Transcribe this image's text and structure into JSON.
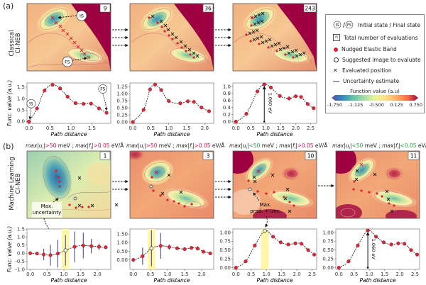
{
  "panel_labels": {
    "a": "(a)",
    "b": "(b)"
  },
  "row_labels": {
    "classical": [
      "Classical",
      "CI-NEB"
    ],
    "ml": [
      "Machine Learning",
      "CI-NEB"
    ]
  },
  "colors": {
    "neb_point": "#d62839",
    "uncertainty": "#4b4ba0",
    "highlight": "#fff7a8",
    "bad": "#e0114f",
    "good": "#2a9a4a"
  },
  "maps_a": [
    {
      "count": "9"
    },
    {
      "count": "36"
    },
    {
      "count": "243"
    }
  ],
  "maps_b": [
    {
      "count": "1",
      "u_label": "max|u",
      "u_op": ">50",
      "u_unit": " meV ; ",
      "f_label": "max|f",
      "f_op": ">0.05",
      "f_unit": "  eV/Å",
      "u_ok": false,
      "f_ok": false
    },
    {
      "count": "3",
      "u_label": "max|u",
      "u_op": ">50",
      "u_unit": " meV ; ",
      "f_label": "max|f",
      "f_op": ">0.05",
      "f_unit": "  eV/Å",
      "u_ok": false,
      "f_ok": false
    },
    {
      "count": "10",
      "u_label": "max|u",
      "u_op": "<50",
      "u_unit": " meV ; ",
      "f_label": "max|f",
      "f_op": ">0.05",
      "f_unit": "  eV/Å",
      "u_ok": true,
      "f_ok": false
    },
    {
      "count": "11",
      "u_label": "max|u",
      "u_op": "<50",
      "u_unit": " meV ; ",
      "f_label": "max|f",
      "f_op": "<0.05",
      "f_unit": "  eV/Å",
      "u_ok": true,
      "f_ok": true
    }
  ],
  "annotations": {
    "IS": "IS",
    "FS": "FS",
    "max_uncertainty": [
      "Max.",
      "uncertainty"
    ],
    "max_pred_unc": [
      "Max.",
      "pred. + unc."
    ],
    "barrier": "1.060 eV"
  },
  "legend": {
    "is_fs": "Initial state / Final state",
    "n_box": "n",
    "total_evals": "Total number of evaluations",
    "neb": "Nudged Elastic Band",
    "suggested": "Suggested image to evaluate",
    "evaluated": "Evaluated position",
    "uncertainty": "Uncertainty estimate",
    "colorbar_title": "Function value (a.u)",
    "colorbar_ticks": [
      "-1.750",
      "-1.125",
      "-0.500",
      "0.125",
      "0.750"
    ]
  },
  "chart_data": [
    {
      "type": "line",
      "id": "a1",
      "xlabel": "Path distance",
      "ylabel": "Func. value (a.u.)",
      "xlim": [
        -0.05,
        1.95
      ],
      "ylim": [
        -0.08,
        1.68
      ],
      "xticks": [
        "0.0",
        "0.5",
        "1.0",
        "1.5"
      ],
      "xtick_values": [
        0,
        0.5,
        1.0,
        1.5
      ],
      "yticks": [
        "0.0",
        "0.5",
        "1.0",
        "1.5"
      ],
      "ytick_values": [
        0,
        0.5,
        1.0,
        1.5
      ],
      "x": [
        0.0,
        0.19,
        0.37,
        0.56,
        0.74,
        0.92,
        1.11,
        1.3,
        1.48,
        1.67,
        1.85
      ],
      "y": [
        0.0,
        0.57,
        1.35,
        1.6,
        1.44,
        1.08,
        0.8,
        0.77,
        0.78,
        0.57,
        0.38
      ],
      "annotations": [
        "IS",
        "FS"
      ]
    },
    {
      "type": "line",
      "id": "a2",
      "xlabel": "Path distance",
      "ylabel": "",
      "xlim": [
        -0.08,
        2.25
      ],
      "ylim": [
        -0.05,
        1.38
      ],
      "xticks": [
        "0.0",
        "0.5",
        "1.0",
        "1.5",
        "2.0"
      ],
      "xtick_values": [
        0,
        0.5,
        1.0,
        1.5,
        2.0
      ],
      "yticks": [
        "0.00",
        "0.25",
        "0.50",
        "0.75",
        "1.00",
        "1.25"
      ],
      "ytick_values": [
        0,
        0.25,
        0.5,
        0.75,
        1.0,
        1.25
      ],
      "x": [
        0.0,
        0.3,
        0.48,
        0.62,
        0.79,
        1.0,
        1.32,
        1.53,
        1.7,
        1.91,
        2.12
      ],
      "y": [
        0.0,
        0.43,
        1.15,
        1.32,
        1.13,
        0.74,
        0.66,
        0.73,
        0.71,
        0.51,
        0.38
      ]
    },
    {
      "type": "line",
      "id": "a3",
      "xlabel": "Path distance",
      "ylabel": "",
      "xlim": [
        -0.1,
        2.7
      ],
      "ylim": [
        -0.05,
        1.1
      ],
      "xticks": [
        "0.0",
        "0.5",
        "1.0",
        "1.5",
        "2.0",
        "2.5"
      ],
      "xtick_values": [
        0,
        0.5,
        1.0,
        1.5,
        2.0,
        2.5
      ],
      "yticks": [
        "0.0",
        "0.2",
        "0.4",
        "0.6",
        "0.8",
        "1.0"
      ],
      "ytick_values": [
        0,
        0.2,
        0.4,
        0.6,
        0.8,
        1.0
      ],
      "x": [
        0.0,
        0.35,
        0.72,
        0.95,
        1.17,
        1.47,
        1.78,
        2.0,
        2.18,
        2.4,
        2.6
      ],
      "y": [
        0.0,
        0.22,
        0.86,
        1.06,
        0.97,
        0.73,
        0.66,
        0.72,
        0.7,
        0.5,
        0.38
      ],
      "barrier": {
        "x": 0.95,
        "from": 0.0,
        "to": 1.06,
        "label": "1.060 eV"
      }
    },
    {
      "type": "line",
      "id": "b1",
      "xlabel": "Path distance",
      "ylabel": "Func. value (a.u.)",
      "xlim": [
        -0.1,
        2.4
      ],
      "ylim": [
        -1.0,
        1.5
      ],
      "xticks": [
        "0.0",
        "0.5",
        "1.0",
        "1.5",
        "2.0"
      ],
      "xtick_values": [
        0,
        0.5,
        1.0,
        1.5,
        2.0
      ],
      "yticks": [
        "-1.0",
        "-0.5",
        "0.0",
        "0.5",
        "1.0",
        "1.5"
      ],
      "ytick_values": [
        -1.0,
        -0.5,
        0,
        0.5,
        1.0,
        1.5
      ],
      "x": [
        0.0,
        0.2,
        0.4,
        0.6,
        0.82,
        1.05,
        1.32,
        1.58,
        1.82,
        2.05,
        2.25
      ],
      "y": [
        0.0,
        -0.02,
        -0.08,
        -0.12,
        -0.02,
        0.18,
        0.4,
        0.48,
        0.44,
        0.4,
        0.37
      ],
      "uncertainty": [
        0,
        0,
        0.35,
        0.65,
        0.85,
        0.95,
        0.95,
        0.8,
        0.45,
        0.2,
        0
      ],
      "suggested_index": 5,
      "highlight_x": 1.05
    },
    {
      "type": "line",
      "id": "b2",
      "xlabel": "Path distance",
      "ylabel": "",
      "xlim": [
        -0.1,
        2.35
      ],
      "ylim": [
        -0.55,
        1.8
      ],
      "xticks": [
        "0.0",
        "0.5",
        "1.0",
        "1.5",
        "2.0"
      ],
      "xtick_values": [
        0,
        0.5,
        1.0,
        1.5,
        2.0
      ],
      "yticks": [
        "0.00",
        "0.50",
        "1.00",
        "1.50"
      ],
      "ytick_values": [
        0,
        0.5,
        1.0,
        1.5
      ],
      "x": [
        0.0,
        0.27,
        0.53,
        0.8,
        1.05,
        1.28,
        1.5,
        1.7,
        1.88,
        2.05,
        2.25
      ],
      "y": [
        0.0,
        0.22,
        0.68,
        0.82,
        0.75,
        0.68,
        0.63,
        0.7,
        0.67,
        0.48,
        0.38
      ],
      "uncertainty": [
        0,
        0.5,
        1.05,
        0.75,
        0.15,
        0,
        0,
        0.08,
        0.12,
        0,
        0
      ],
      "suggested_index": 2,
      "highlight_x": 0.53
    },
    {
      "type": "line",
      "id": "b3",
      "xlabel": "Path distance",
      "ylabel": "",
      "xlim": [
        -0.1,
        2.65
      ],
      "ylim": [
        -0.05,
        1.1
      ],
      "xticks": [
        "0.0",
        "0.5",
        "1.0",
        "1.5",
        "2.0",
        "2.5"
      ],
      "xtick_values": [
        0,
        0.5,
        1.0,
        1.5,
        2.0,
        2.5
      ],
      "yticks": [
        "0.00",
        "0.25",
        "0.50",
        "0.75",
        "1.00"
      ],
      "ytick_values": [
        0,
        0.25,
        0.5,
        0.75,
        1.0
      ],
      "x": [
        0.0,
        0.32,
        0.62,
        0.95,
        1.22,
        1.47,
        1.72,
        1.95,
        2.15,
        2.37,
        2.57
      ],
      "y": [
        0.0,
        0.18,
        0.63,
        1.05,
        0.88,
        0.72,
        0.66,
        0.69,
        0.68,
        0.5,
        0.37
      ],
      "suggested_index": 3,
      "highlight_x": 0.95
    },
    {
      "type": "line",
      "id": "b4",
      "xlabel": "Path distance",
      "ylabel": "",
      "xlim": [
        -0.1,
        2.65
      ],
      "ylim": [
        -0.05,
        1.1
      ],
      "xticks": [
        "0.0",
        "0.5",
        "1.0",
        "1.5",
        "2.0",
        "2.5"
      ],
      "xtick_values": [
        0,
        0.5,
        1.0,
        1.5,
        2.0,
        2.5
      ],
      "yticks": [
        "0.00",
        "0.25",
        "0.50",
        "0.75",
        "1.00"
      ],
      "ytick_values": [
        0,
        0.25,
        0.5,
        0.75,
        1.0
      ],
      "x": [
        0.0,
        0.32,
        0.62,
        0.95,
        1.22,
        1.47,
        1.72,
        1.95,
        2.15,
        2.37,
        2.57
      ],
      "y": [
        0.0,
        0.18,
        0.63,
        1.06,
        0.88,
        0.72,
        0.66,
        0.69,
        0.68,
        0.5,
        0.37
      ],
      "barrier": {
        "x": 0.95,
        "from": 0.0,
        "to": 1.06,
        "label": "1.060 eV"
      }
    }
  ]
}
